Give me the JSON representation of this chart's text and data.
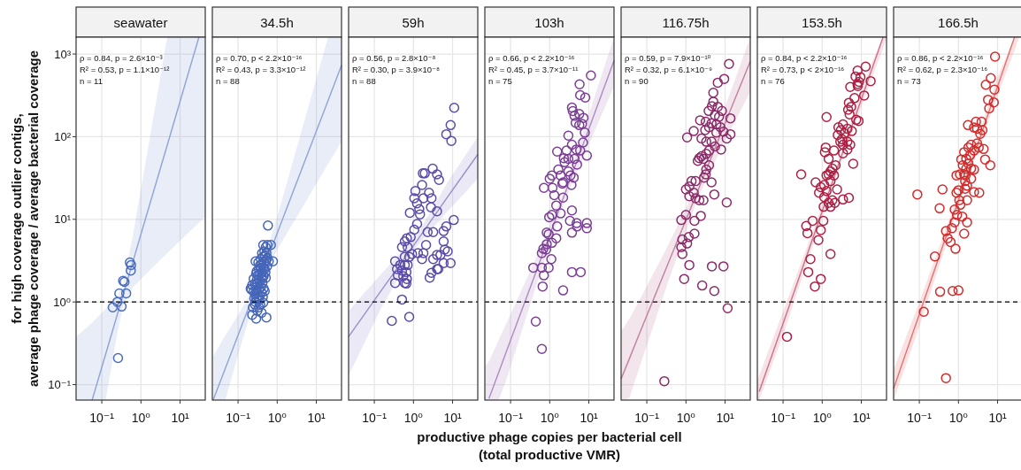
{
  "chart_data": [
    {
      "type": "scatter",
      "title": "seawater",
      "ylabel": "for high coverage outlier contigs,\naverage phage coverage / average bacterial coverage",
      "annotations": [
        "ρ = 0.84, p = 2.6×10⁻³",
        "R² = 0.53, p = 1.1×10⁻¹²",
        "n = 11"
      ],
      "xlim": [
        0.022,
        44
      ],
      "ylim": [
        0.065,
        1600
      ],
      "xticks": [
        {
          "value": 0.1,
          "label": "10⁻¹"
        },
        {
          "value": 1,
          "label": "10⁰"
        },
        {
          "value": 10,
          "label": "10¹"
        }
      ],
      "yticks": [
        {
          "value": 0.1,
          "label": "10⁻¹"
        },
        {
          "value": 1,
          "label": "10⁰"
        },
        {
          "value": 10,
          "label": "10¹"
        },
        {
          "value": 100,
          "label": "10²"
        },
        {
          "value": 1000,
          "label": "10³"
        }
      ],
      "log": "xy",
      "grid": true,
      "marker": "circle",
      "ref_lines": [
        {
          "axis": "y",
          "value": 1,
          "line_style": "dashed",
          "color": "#000000"
        }
      ],
      "series": [
        {
          "color": "#4a6cc0",
          "x": [
            0.52,
            0.56,
            0.55,
            0.35,
            0.38,
            0.28,
            0.42,
            0.25,
            0.19,
            0.32,
            0.26
          ],
          "values": [
            3.0,
            2.8,
            2.4,
            1.8,
            1.75,
            1.27,
            1.27,
            1.0,
            0.86,
            0.88,
            0.21
          ]
        },
        {
          "type": "line",
          "marker": "none",
          "color": "#8ea4d8",
          "x": [
            0.022,
            0.0565,
            0.126,
            0.25,
            0.355,
            0.63,
            1.58,
            4.7,
            15.8,
            30.3,
            44
          ],
          "values": [
            null,
            0.065,
            0.236,
            0.71,
            1.24,
            3.13,
            13.8,
            79,
            560,
            1600,
            null
          ],
          "lower": [
            0.065,
            0.065,
            0.065,
            0.43,
            0.92,
            1.51,
            2.34,
            3.9,
            6.8,
            9.1,
            10.7
          ],
          "upper": [
            0.38,
            0.56,
            0.83,
            1.17,
            1.67,
            6.6,
            81,
            1600,
            1600,
            1600,
            1600
          ]
        }
      ]
    },
    {
      "type": "scatter",
      "title": "34.5h",
      "annotations": [
        "ρ = 0.70, p < 2.2×10⁻¹⁶",
        "R² = 0.43, p = 3.3×10⁻¹²",
        "n = 88"
      ],
      "xlim": [
        0.022,
        44
      ],
      "ylim": [
        0.065,
        1600
      ],
      "xticks": [
        {
          "value": 0.1,
          "label": "10⁻¹"
        },
        {
          "value": 1,
          "label": "10⁰"
        },
        {
          "value": 10,
          "label": "10¹"
        }
      ],
      "yticks": [
        {
          "value": 0.1,
          "label": null
        },
        {
          "value": 1,
          "label": null
        },
        {
          "value": 10,
          "label": null
        },
        {
          "value": 100,
          "label": null
        },
        {
          "value": 1000,
          "label": null
        }
      ],
      "tick_labels": "x",
      "log": "xy",
      "grid": true,
      "marker": "circle",
      "ref_lines": [
        {
          "axis": "y",
          "value": 1,
          "line_style": "dashed",
          "color": "#000000"
        }
      ],
      "series": [
        {
          "color": "#4565b8",
          "x": [
            0.58,
            0.44,
            0.56,
            0.69,
            0.51,
            0.78,
            0.28,
            0.51,
            0.22,
            0.24,
            0.34,
            0.23,
            0.29,
            0.53,
            0.44,
            0.28,
            0.3,
            0.33,
            0.36,
            0.27,
            0.31,
            0.4,
            0.25,
            0.21,
            0.29,
            0.34,
            0.38,
            0.45,
            0.23,
            0.27,
            0.31,
            0.36,
            0.42,
            0.3,
            0.34,
            0.39,
            0.45,
            0.32,
            0.36,
            0.41,
            0.3,
            0.34,
            0.38,
            0.44,
            0.48,
            0.36,
            0.4,
            0.46,
            0.52,
            0.33,
            0.38,
            0.43,
            0.49,
            0.56,
            0.41,
            0.47,
            0.53,
            0.61,
            0.26,
            0.35,
            0.43,
            0.48,
            0.25,
            0.29,
            0.42,
            0.5,
            0.55,
            0.31,
            0.37,
            0.4,
            0.27
          ],
          "values": [
            8.4,
            4.9,
            4.9,
            4.9,
            4.6,
            3.1,
            3.1,
            1.96,
            1.41,
            0.86,
            0.86,
            0.7,
            0.63,
            0.65,
            0.98,
            1.0,
            1.1,
            1.15,
            1.2,
            1.25,
            1.3,
            1.3,
            1.35,
            1.45,
            1.4,
            1.45,
            1.5,
            1.45,
            1.6,
            1.65,
            1.7,
            1.75,
            1.7,
            1.85,
            1.9,
            2.0,
            2.05,
            2.1,
            2.2,
            2.3,
            2.35,
            2.5,
            2.55,
            2.6,
            2.5,
            2.75,
            2.9,
            3.0,
            3.2,
            3.0,
            3.3,
            3.5,
            3.6,
            3.4,
            3.9,
            4.1,
            3.9,
            3.1,
            1.1,
            1.05,
            1.15,
            1.35,
            1.9,
            2.2,
            1.95,
            2.3,
            2.7,
            0.78,
            0.92,
            0.74,
            0.93
          ]
        },
        {
          "type": "line",
          "marker": "none",
          "color": "#8ea4d8",
          "x": [
            0.023,
            0.047,
            0.126,
            0.355,
            1,
            3.98,
            20,
            44
          ],
          "values": [
            0.065,
            0.156,
            0.53,
            1.9,
            6.8,
            37.5,
            274,
            733
          ],
          "lower": [
            0.065,
            0.065,
            0.33,
            1.69,
            4.3,
            12.9,
            47,
            87
          ],
          "upper": [
            0.22,
            0.39,
            0.83,
            2.13,
            10.7,
            108,
            1600,
            1600
          ]
        }
      ]
    },
    {
      "type": "scatter",
      "title": "59h",
      "annotations": [
        "ρ = 0.56, p = 2.8×10⁻⁸",
        "R² = 0.30, p = 3.9×10⁻⁸",
        "n = 88"
      ],
      "xlim": [
        0.022,
        44
      ],
      "ylim": [
        0.065,
        1600
      ],
      "xticks": [
        {
          "value": 0.1,
          "label": "10⁻¹"
        },
        {
          "value": 1,
          "label": "10⁰"
        },
        {
          "value": 10,
          "label": "10¹"
        }
      ],
      "yticks": [
        {
          "value": 0.1,
          "label": null
        },
        {
          "value": 1,
          "label": null
        },
        {
          "value": 10,
          "label": null
        },
        {
          "value": 100,
          "label": null
        },
        {
          "value": 1000,
          "label": null
        }
      ],
      "tick_labels": "x",
      "log": "xy",
      "grid": true,
      "marker": "circle",
      "ref_lines": [
        {
          "axis": "y",
          "value": 1,
          "line_style": "dashed",
          "color": "#000000"
        }
      ],
      "series": [
        {
          "color": "#5a4aa8",
          "x": [
            11,
            8.9,
            6.9,
            9.3,
            3.1,
            1.74,
            1.95,
            4.0,
            4.5,
            1.66,
            1.12,
            2.5,
            1.05,
            1.8,
            2.9,
            1.23,
            1.41,
            2.8,
            0.81,
            1.47,
            4.0,
            10.7,
            1.24,
            1.05,
            6.9,
            5.9,
            2.3,
            3.2,
            0.85,
            0.68,
            0.6,
            5.9,
            0.51,
            0.71,
            2.1,
            6.3,
            7.5,
            0.92,
            1.3,
            1.8,
            4.0,
            4.9,
            0.6,
            0.78,
            0.34,
            1.66,
            3.2,
            5.9,
            8.9,
            0.46,
            0.6,
            0.71,
            0.38,
            0.51,
            0.66,
            4.3,
            4.0,
            2.9,
            2.6,
            0.4,
            0.55,
            0.68,
            0.6,
            0.34,
            0.66,
            0.51,
            0.28,
            0.78
          ],
          "values": [
            224,
            138,
            107,
            89,
            41,
            36,
            36,
            35,
            30,
            26,
            22,
            21,
            18,
            18,
            18,
            15.6,
            13.3,
            14,
            12,
            11.5,
            12.5,
            9.8,
            8.8,
            7.5,
            8.2,
            7.2,
            7.0,
            7.0,
            6.1,
            5.9,
            5.4,
            5.4,
            4.6,
            4.6,
            4.9,
            4.3,
            4.1,
            3.8,
            3.9,
            3.9,
            3.7,
            3.7,
            3.5,
            3.5,
            3.1,
            3.3,
            3.3,
            2.95,
            2.95,
            2.8,
            2.8,
            2.8,
            2.5,
            2.4,
            2.3,
            2.5,
            2.5,
            2.25,
            1.97,
            2.1,
            2.05,
            1.9,
            1.7,
            1.7,
            1.67,
            1.07,
            0.59,
            0.66
          ]
        },
        {
          "type": "line",
          "marker": "none",
          "color": "#9b8fcc",
          "x": [
            0.022,
            0.158,
            1.26,
            7.9,
            44
          ],
          "values": [
            0.38,
            1.42,
            5.6,
            19.4,
            61
          ],
          "lower": [
            0.129,
            0.89,
            4.8,
            12.9,
            31
          ],
          "upper": [
            0.78,
            2.24,
            6.6,
            29.5,
            100
          ]
        }
      ]
    },
    {
      "type": "scatter",
      "title": "103h",
      "xlabel": "productive phage copies per bacterial cell\n(total productive VMR)",
      "annotations": [
        "ρ = 0.66, p < 2.2×10⁻¹⁶",
        "R² = 0.45, p = 3.7×10⁻¹¹",
        "n = 75"
      ],
      "xlim": [
        0.022,
        44
      ],
      "ylim": [
        0.065,
        1600
      ],
      "xticks": [
        {
          "value": 0.1,
          "label": "10⁻¹"
        },
        {
          "value": 1,
          "label": "10⁰"
        },
        {
          "value": 10,
          "label": "10¹"
        }
      ],
      "yticks": [
        {
          "value": 0.1,
          "label": null
        },
        {
          "value": 1,
          "label": null
        },
        {
          "value": 10,
          "label": null
        },
        {
          "value": 100,
          "label": null
        },
        {
          "value": 1000,
          "label": null
        }
      ],
      "tick_labels": "x",
      "log": "xy",
      "grid": true,
      "marker": "circle",
      "ref_lines": [
        {
          "axis": "y",
          "value": 1,
          "line_style": "dashed",
          "color": "#000000"
        }
      ],
      "series": [
        {
          "color": "#7a3d95",
          "x": [
            11.3,
            5.8,
            6.0,
            8.1,
            3.7,
            3.9,
            4.3,
            5.7,
            7.3,
            4.6,
            6.7,
            5.7,
            7.9,
            3.0,
            7.1,
            3.7,
            2.7,
            1.55,
            4.8,
            6.0,
            8.9,
            2.3,
            3.0,
            4.3,
            2.4,
            5.0,
            1.66,
            3.0,
            1.14,
            1.9,
            3.4,
            4.1,
            1.0,
            2.2,
            3.6,
            2.1,
            0.71,
            1.18,
            1.31,
            2.2,
            1.47,
            1.9,
            1.14,
            0.97,
            3.7,
            3.3,
            1.55,
            4.9,
            8.9,
            5.0,
            8.9,
            3.7,
            0.84,
            0.94,
            1.47,
            0.84,
            1.14,
            0.69,
            0.81,
            0.63,
            1.1,
            0.38,
            0.63,
            0.94,
            0.71,
            3.7,
            6.2,
            0.66,
            2.2,
            0.44,
            0.63
          ],
          "values": [
            550,
            430,
            318,
            297,
            225,
            204,
            179,
            188,
            169,
            147,
            143,
            138,
            112,
            103,
            85,
            80,
            68,
            66,
            70,
            68,
            59,
            55,
            54,
            54,
            49,
            46,
            40,
            38,
            34,
            34,
            34,
            32,
            31,
            28,
            26,
            27,
            24,
            24,
            19.6,
            18.3,
            14.7,
            11.8,
            11.3,
            10.6,
            12.8,
            9.6,
            8.2,
            9.0,
            9.0,
            8.2,
            7.8,
            6.9,
            6.9,
            6.6,
            5.9,
            5.0,
            5.2,
            4.4,
            4.3,
            3.9,
            3.3,
            2.6,
            2.6,
            2.6,
            2.1,
            2.3,
            2.3,
            1.54,
            1.38,
            0.58,
            0.27
          ]
        },
        {
          "type": "line",
          "marker": "none",
          "color": "#b08ac2",
          "x": [
            0.022,
            0.028,
            0.05,
            0.079,
            0.4,
            2.0,
            10,
            44
          ],
          "values": [
            null,
            0.068,
            0.141,
            0.255,
            2.0,
            15.8,
            124,
            830
          ],
          "lower": [
            0.065,
            0.065,
            0.065,
            0.117,
            1.32,
            13.4,
            81,
            407
          ],
          "upper": [
            0.166,
            0.19,
            0.35,
            0.56,
            3.0,
            18.5,
            186,
            1600
          ]
        }
      ]
    },
    {
      "type": "scatter",
      "title": "116.75h",
      "annotations": [
        "ρ = 0.59, p = 7.9×10⁻¹⁰",
        "R² = 0.32, p = 6.1×10⁻⁹",
        "n = 90"
      ],
      "xlim": [
        0.022,
        44
      ],
      "ylim": [
        0.065,
        1600
      ],
      "xticks": [
        {
          "value": 0.1,
          "label": "10⁻¹"
        },
        {
          "value": 1,
          "label": "10⁰"
        },
        {
          "value": 10,
          "label": "10¹"
        }
      ],
      "yticks": [
        {
          "value": 0.1,
          "label": null
        },
        {
          "value": 1,
          "label": null
        },
        {
          "value": 10,
          "label": null
        },
        {
          "value": 100,
          "label": null
        },
        {
          "value": 1000,
          "label": null
        }
      ],
      "tick_labels": "x",
      "log": "xy",
      "grid": true,
      "marker": "circle",
      "ref_lines": [
        {
          "axis": "y",
          "value": 1,
          "line_style": "dashed",
          "color": "#000000"
        }
      ],
      "series": [
        {
          "color": "#8a2a68",
          "x": [
            12.6,
            9.5,
            6.5,
            5.0,
            5.0,
            4.6,
            6.5,
            8.3,
            3.8,
            5.5,
            7.0,
            13.7,
            2.3,
            3.2,
            4.5,
            6.0,
            7.6,
            3.9,
            3.1,
            9.1,
            6.0,
            1.58,
            1.07,
            2.5,
            3.3,
            4.5,
            11,
            13.7,
            5.5,
            7.9,
            3.9,
            2.5,
            3.3,
            2.2,
            2.8,
            2.0,
            3.9,
            3.3,
            3.2,
            2.9,
            4.5,
            1.76,
            1.39,
            1.22,
            1.0,
            1.58,
            1.22,
            1.76,
            2.2,
            2.8,
            5.3,
            11,
            1.0,
            0.76,
            1.65,
            2.4,
            1.65,
            1.18,
            0.81,
            1.07,
            0.76,
            0.81,
            1.22,
            4.6,
            9.1,
            0.9,
            2.6,
            5.3,
            11.6,
            0.28
          ],
          "values": [
            760,
            500,
            450,
            340,
            265,
            234,
            230,
            205,
            205,
            182,
            174,
            167,
            158,
            152,
            145,
            141,
            130,
            130,
            120,
            115,
            112,
            117,
            98,
            95,
            87,
            87,
            95,
            107,
            76,
            70,
            68,
            58,
            62,
            55,
            54,
            51,
            45,
            40,
            35,
            32,
            28,
            29,
            29,
            25,
            23,
            21,
            19,
            18,
            17,
            17,
            20,
            16,
            11.3,
            9.8,
            9.6,
            11,
            6.7,
            6.1,
            5.7,
            5.1,
            4.6,
            3.8,
            2.8,
            2.7,
            2.7,
            1.9,
            1.58,
            1.36,
            0.84,
            0.11
          ]
        },
        {
          "type": "line",
          "marker": "none",
          "color": "#c27f9f",
          "x": [
            0.022,
            0.0355,
            0.063,
            0.316,
            2.0,
            10,
            44
          ],
          "values": [
            0.117,
            0.204,
            0.4,
            2.6,
            22,
            145,
            817
          ],
          "lower": [
            0.065,
            0.068,
            0.155,
            1.52,
            18,
            91,
            347
          ],
          "upper": [
            0.44,
            0.62,
            1.02,
            4.4,
            27,
            229,
            1600
          ]
        }
      ]
    },
    {
      "type": "scatter",
      "title": "153.5h",
      "annotations": [
        "ρ = 0.84, p < 2.2×10⁻¹⁶",
        "R² = 0.73, p < 2×10⁻¹⁶",
        "n = 76"
      ],
      "xlim": [
        0.022,
        44
      ],
      "ylim": [
        0.065,
        1600
      ],
      "xticks": [
        {
          "value": 0.1,
          "label": "10⁻¹"
        },
        {
          "value": 1,
          "label": "10⁰"
        },
        {
          "value": 10,
          "label": "10¹"
        }
      ],
      "yticks": [
        {
          "value": 0.1,
          "label": null
        },
        {
          "value": 1,
          "label": null
        },
        {
          "value": 10,
          "label": null
        },
        {
          "value": 100,
          "label": null
        },
        {
          "value": 1000,
          "label": null
        }
      ],
      "tick_labels": "x",
      "log": "xy",
      "grid": true,
      "marker": "circle",
      "ref_lines": [
        {
          "axis": "y",
          "value": 1,
          "line_style": "dashed",
          "color": "#000000"
        }
      ],
      "series": [
        {
          "color": "#ad1f42",
          "x": [
            12.9,
            8,
            7.1,
            17.3,
            9.5,
            8.7,
            8,
            8.1,
            5.2,
            11.8,
            6.7,
            4.8,
            5.5,
            4.6,
            5.0,
            1.29,
            7.4,
            8.5,
            3.4,
            2.6,
            4.4,
            3.0,
            3.7,
            5.7,
            2.5,
            3.2,
            2.9,
            4.4,
            5.2,
            3.4,
            4.4,
            3.4,
            6.2,
            1.23,
            1.17,
            2.0,
            1.46,
            2.2,
            1.82,
            1.63,
            1.46,
            2.0,
            1.29,
            0.29,
            0.68,
            1.13,
            1.63,
            2.4,
            0.92,
            0.83,
            1.29,
            1.13,
            1.82,
            1.46,
            1.09,
            1.63,
            3.4,
            4.8,
            2.1,
            0.57,
            1.07,
            0.39,
            0.42,
            0.92,
            0.8,
            1.63,
            0.5,
            0.44,
            0.92,
            0.65,
            0.126
          ],
          "values": [
            705,
            630,
            535,
            470,
            525,
            460,
            433,
            410,
            400,
            315,
            293,
            257,
            230,
            212,
            186,
            173,
            160,
            155,
            141,
            130,
            125,
            120,
            110,
            117,
            105,
            93,
            87,
            87,
            80,
            80,
            70,
            63,
            47,
            74,
            65,
            68,
            54,
            45,
            41,
            38,
            35,
            34,
            34,
            35,
            28,
            26,
            29,
            23,
            24.5,
            21,
            22,
            18.6,
            17,
            15.8,
            14.2,
            14.2,
            17.4,
            18.2,
            15.8,
            9.6,
            9.6,
            8.3,
            6.8,
            7.4,
            5.6,
            3.8,
            3.3,
            2.3,
            1.9,
            1.54,
            0.38
          ]
        },
        {
          "type": "line",
          "marker": "none",
          "color": "#d07088",
          "x": [
            0.022,
            0.0245,
            0.1,
            2.0,
            15.8,
            35.9,
            44
          ],
          "values": [
            null,
            0.082,
            0.55,
            32,
            527,
            1600,
            null
          ],
          "lower": [
            0.065,
            0.065,
            0.4,
            28,
            417,
            1175,
            1550
          ],
          "upper": [
            0.112,
            0.129,
            0.76,
            36,
            660,
            1600,
            1600
          ]
        }
      ]
    },
    {
      "type": "scatter",
      "title": "166.5h",
      "annotations": [
        "ρ = 0.86, p < 2.2×10⁻¹⁶",
        "R² = 0.62, p = 2.3×10⁻¹⁶",
        "n = 73"
      ],
      "xlim": [
        0.022,
        44
      ],
      "ylim": [
        0.065,
        1600
      ],
      "xticks": [
        {
          "value": 0.1,
          "label": "10⁻¹"
        },
        {
          "value": 1,
          "label": "10⁰"
        },
        {
          "value": 10,
          "label": "10¹"
        }
      ],
      "yticks": [
        {
          "value": 0.1,
          "label": null
        },
        {
          "value": 1,
          "label": null
        },
        {
          "value": 10,
          "label": null
        },
        {
          "value": 100,
          "label": null
        },
        {
          "value": 1000,
          "label": null
        }
      ],
      "tick_labels": "x",
      "log": "xy",
      "grid": true,
      "marker": "circle",
      "ref_lines": [
        {
          "axis": "y",
          "value": 1,
          "line_style": "dashed",
          "color": "#000000"
        }
      ],
      "series": [
        {
          "color": "#d32b2b",
          "x": [
            8.6,
            6.7,
            5.0,
            8.3,
            5.7,
            8.0,
            6.1,
            1.75,
            2.8,
            3.9,
            2.5,
            3.0,
            4.1,
            3.6,
            2.1,
            3.0,
            1.8,
            3.3,
            4.4,
            2.5,
            1.4,
            2.0,
            1.58,
            1.18,
            4.8,
            1.8,
            1.29,
            2.1,
            2.5,
            1.58,
            6.5,
            1.09,
            1.4,
            1.52,
            0.89,
            2.1,
            1.48,
            1.66,
            1.0,
            1.48,
            0.39,
            0.089,
            0.89,
            2.5,
            3.4,
            1.66,
            1.05,
            1.12,
            0.33,
            0.8,
            0.92,
            1.25,
            1.66,
            0.8,
            0.48,
            0.68,
            0.53,
            0.63,
            0.84,
            1.4,
            0.25,
            0.34,
            0.71,
            1.0,
            0.13,
            0.48
          ],
          "values": [
            930,
            510,
            425,
            372,
            280,
            260,
            220,
            138,
            152,
            152,
            129,
            125,
            120,
            108,
            80,
            83,
            74,
            74,
            71,
            68,
            65,
            60,
            54,
            53,
            53,
            47,
            45,
            41,
            40,
            41,
            45,
            35,
            35,
            34,
            34,
            31,
            29,
            25.5,
            22.5,
            23.5,
            23,
            20,
            21,
            21.4,
            21,
            17,
            17,
            15,
            13.6,
            13.1,
            11.3,
            10.8,
            9.2,
            9.2,
            7.2,
            7.8,
            5.9,
            5.3,
            4.4,
            6.7,
            3.55,
            1.33,
            1.36,
            1.38,
            0.76,
            0.12
          ]
        },
        {
          "type": "line",
          "marker": "none",
          "color": "#e57070",
          "x": [
            0.022,
            0.1,
            1.58,
            10,
            27,
            35.5
          ],
          "values": [
            0.0895,
            0.71,
            32,
            405,
            1600,
            null
          ],
          "lower": [
            0.065,
            0.5,
            28,
            316,
            1100,
            1600
          ],
          "upper": [
            0.151,
            1.0,
            37,
            525,
            1600,
            1600
          ]
        }
      ]
    }
  ]
}
